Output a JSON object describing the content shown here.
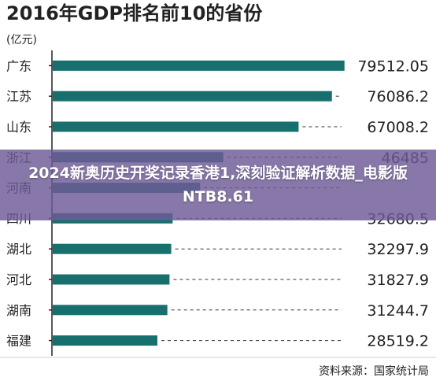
{
  "chart_data": {
    "type": "bar",
    "orientation": "horizontal",
    "title": "2016年GDP排名前10的省份",
    "unit": "(亿元)",
    "categories": [
      "广东",
      "江苏",
      "山东",
      "浙江",
      "河南",
      "四川",
      "湖北",
      "河北",
      "湖南",
      "福建"
    ],
    "values": [
      79512.05,
      76086.2,
      67008.2,
      46485,
      40160,
      32680.5,
      32297.9,
      31827.9,
      31244.7,
      28519.2
    ],
    "value_labels": [
      "79512.05",
      "76086.2",
      "67008.2",
      "46485",
      "",
      "32680.5",
      "32297.9",
      "31827.9",
      "31244.7",
      "28519.2"
    ],
    "xlim": [
      0,
      80000
    ],
    "source": "资料来源：国家统计局",
    "colors": {
      "bar": "#17706e",
      "axis": "#222222",
      "dash": "#333333"
    }
  },
  "overlay": {
    "text": "2024新奥历史开奖记录香港1,深刻验证解析数据_电影版NTB8.61",
    "background": "#6e5a96"
  }
}
